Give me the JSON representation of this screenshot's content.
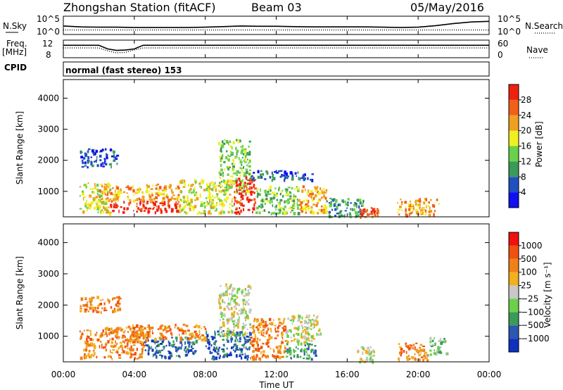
{
  "header": {
    "title": "Zhongshan Station (fitACF)",
    "beam": "Beam 03",
    "date": "05/May/2016"
  },
  "chart_data": [
    {
      "type": "line",
      "panel": "noise",
      "left_label": "N.Sky",
      "right_label": "N.Search",
      "left_ticks": [
        "10^5",
        "10^0"
      ],
      "right_ticks": [
        "10^5",
        "10^0"
      ],
      "series": [
        {
          "style": "solid"
        },
        {
          "style": "dotted"
        }
      ],
      "x": [
        0,
        1,
        2,
        3,
        4,
        5,
        6,
        7,
        8,
        9,
        10,
        11,
        12,
        13,
        14,
        15,
        16,
        17,
        18,
        19,
        20,
        21,
        22,
        23,
        24
      ],
      "n_sky": [
        2.3,
        2.0,
        1.9,
        1.9,
        1.8,
        1.8,
        1.8,
        1.8,
        1.9,
        2.1,
        2.3,
        2.2,
        2.2,
        2.1,
        2.0,
        2.0,
        2.0,
        2.0,
        1.9,
        1.8,
        1.9,
        2.4,
        3.1,
        3.6,
        3.8
      ],
      "n_search": [
        1.0,
        1.0,
        1.0,
        1.0,
        1.0,
        1.0,
        1.0,
        1.0,
        1.0,
        1.0,
        1.0,
        1.0,
        1.0,
        1.0,
        1.0,
        1.0,
        1.0,
        1.0,
        1.0,
        1.0,
        1.0,
        1.0,
        1.0,
        1.0,
        1.0
      ]
    },
    {
      "type": "line",
      "panel": "frequency",
      "left_label": "Freq.",
      "left_unit": "[MHz]",
      "right_label": "Nave",
      "left_ticks": [
        "12",
        "8"
      ],
      "right_ticks": [
        "60",
        "0"
      ],
      "series": [
        {
          "style": "solid"
        },
        {
          "style": "dotted"
        }
      ],
      "x": [
        0,
        1,
        2,
        2.5,
        3,
        3.5,
        4,
        4.5,
        5,
        6,
        7,
        8,
        9,
        10,
        11,
        12,
        13,
        14,
        15,
        16,
        17,
        18,
        19,
        20,
        21,
        22,
        23,
        24
      ],
      "freq_mhz": [
        11.0,
        11.0,
        11.0,
        10.0,
        9.6,
        9.7,
        10.0,
        11.0,
        11.0,
        11.0,
        11.0,
        11.0,
        11.0,
        11.0,
        11.0,
        11.0,
        11.0,
        11.0,
        11.0,
        11.0,
        11.0,
        11.0,
        11.0,
        11.0,
        11.0,
        11.0,
        11.0,
        11.0
      ],
      "nave": [
        34,
        34,
        34,
        22,
        14,
        16,
        26,
        34,
        34,
        34,
        34,
        34,
        34,
        34,
        34,
        34,
        34,
        34,
        34,
        34,
        34,
        34,
        34,
        34,
        34,
        34,
        34,
        34
      ]
    },
    {
      "type": "text",
      "panel": "cpid",
      "label": "CPID",
      "text": "normal (fast stereo) 153"
    },
    {
      "type": "heatmap",
      "panel": "power",
      "ylabel": "Slant Range [km]",
      "yticks": [
        "1000",
        "2000",
        "3000",
        "4000"
      ],
      "ylim": [
        180,
        4600
      ],
      "xlim": [
        0,
        24
      ],
      "colorbar_label": "Power [dB]",
      "colorbar_ticks": [
        "4",
        "8",
        "12",
        "16",
        "20",
        "24",
        "28"
      ],
      "colorbar_colors": [
        "#1010f0",
        "#2050c0",
        "#3a9a5a",
        "#6bd04a",
        "#f0f020",
        "#f0a020",
        "#f06018",
        "#f02010"
      ],
      "regions": [
        {
          "x": [
            0.9,
            2.6
          ],
          "y": [
            300,
            1300
          ],
          "level": 4
        },
        {
          "x": [
            2.6,
            6.5
          ],
          "y": [
            350,
            700
          ],
          "level": 7
        },
        {
          "x": [
            2.0,
            6.5
          ],
          "y": [
            700,
            1250
          ],
          "level": 5
        },
        {
          "x": [
            6.5,
            9.5
          ],
          "y": [
            300,
            1400
          ],
          "level": 4
        },
        {
          "x": [
            8.7,
            10.5
          ],
          "y": [
            1000,
            2700
          ],
          "level": 3
        },
        {
          "x": [
            9.6,
            10.8
          ],
          "y": [
            300,
            1500
          ],
          "level": 7
        },
        {
          "x": [
            10.5,
            14.0
          ],
          "y": [
            1400,
            1700
          ],
          "level": 1
        },
        {
          "x": [
            10.8,
            13.2
          ],
          "y": [
            300,
            1200
          ],
          "level": 3
        },
        {
          "x": [
            13.2,
            14.8
          ],
          "y": [
            300,
            1200
          ],
          "level": 5
        },
        {
          "x": [
            14.8,
            17.0
          ],
          "y": [
            200,
            800
          ],
          "level": 2
        },
        {
          "x": [
            16.7,
            17.7
          ],
          "y": [
            200,
            500
          ],
          "level": 6
        },
        {
          "x": [
            18.8,
            21.2
          ],
          "y": [
            250,
            800
          ],
          "level": 5
        },
        {
          "x": [
            0.9,
            3.0
          ],
          "y": [
            1800,
            2400
          ],
          "level": 1
        }
      ]
    },
    {
      "type": "heatmap",
      "panel": "velocity",
      "ylabel": "Slant Range [km]",
      "yticks": [
        "1000",
        "2000",
        "3000",
        "4000"
      ],
      "ylim": [
        180,
        4600
      ],
      "xlim": [
        0,
        24
      ],
      "xticks": [
        "00:00",
        "04:00",
        "08:00",
        "12:00",
        "16:00",
        "20:00",
        "00:00"
      ],
      "xlabel": "Time UT",
      "colorbar_label": "Velocity [m s⁻¹]",
      "colorbar_ticks": [
        "1000",
        "500",
        "100",
        "25",
        "−25",
        "−100",
        "−500",
        "−1000"
      ],
      "colorbar_colors": [
        "#1030c0",
        "#2a58b0",
        "#3a9a5a",
        "#6bd04a",
        "#c8c8c8",
        "#f0b020",
        "#f08018",
        "#f05010",
        "#f01010"
      ],
      "regions": [
        {
          "x": [
            0.9,
            4.5
          ],
          "y": [
            300,
            1300
          ],
          "level": 6
        },
        {
          "x": [
            4.5,
            7.5
          ],
          "y": [
            350,
            1000
          ],
          "level": 1
        },
        {
          "x": [
            3.5,
            8.0
          ],
          "y": [
            900,
            1400
          ],
          "level": 6
        },
        {
          "x": [
            8.0,
            10.5
          ],
          "y": [
            300,
            1200
          ],
          "level": 1
        },
        {
          "x": [
            8.7,
            10.5
          ],
          "y": [
            1000,
            2700
          ],
          "level": 4
        },
        {
          "x": [
            10.5,
            12.5
          ],
          "y": [
            300,
            1600
          ],
          "level": 6
        },
        {
          "x": [
            12.5,
            14.5
          ],
          "y": [
            800,
            1700
          ],
          "level": 4
        },
        {
          "x": [
            12.5,
            14.2
          ],
          "y": [
            300,
            800
          ],
          "level": 2
        },
        {
          "x": [
            16.5,
            17.5
          ],
          "y": [
            200,
            700
          ],
          "level": 4
        },
        {
          "x": [
            18.8,
            20.5
          ],
          "y": [
            250,
            800
          ],
          "level": 6
        },
        {
          "x": [
            20.5,
            21.6
          ],
          "y": [
            400,
            1000
          ],
          "level": 3
        },
        {
          "x": [
            0.9,
            3.2
          ],
          "y": [
            1800,
            2300
          ],
          "level": 6
        }
      ]
    }
  ]
}
